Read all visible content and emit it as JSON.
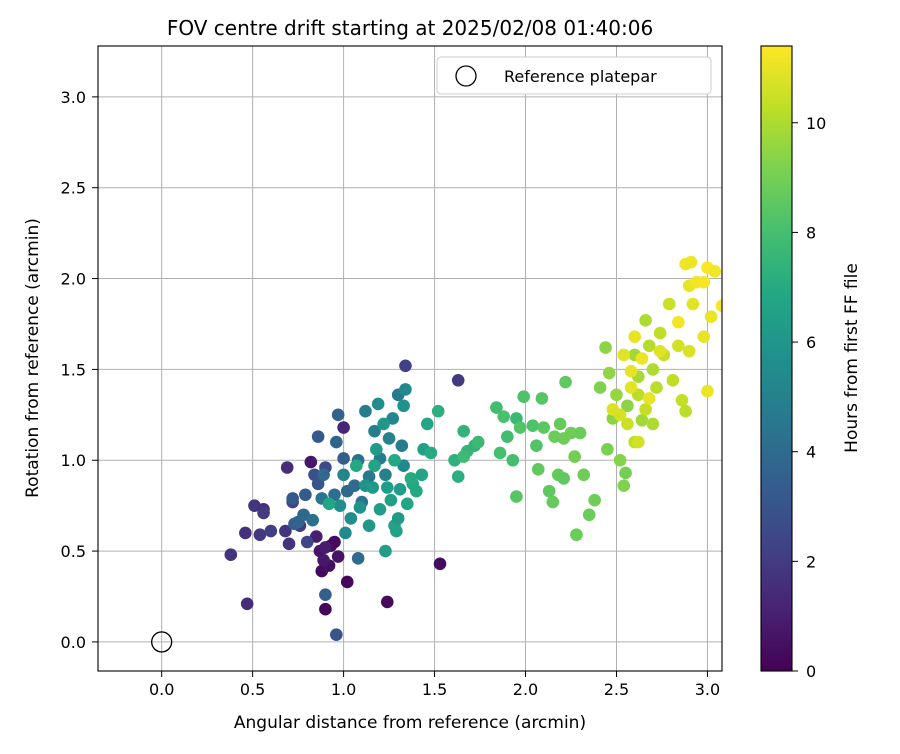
{
  "chart_data": {
    "type": "scatter",
    "title": "FOV centre drift starting at 2025/02/08 01:40:06",
    "xlabel": "Angular distance from reference (arcmin)",
    "ylabel": "Rotation from reference (arcmin)",
    "xlim": [
      -0.35,
      3.08
    ],
    "ylim": [
      -0.16,
      3.28
    ],
    "xticks": [
      0.0,
      0.5,
      1.0,
      1.5,
      2.0,
      2.5,
      3.0
    ],
    "xtick_labels": [
      "0.0",
      "0.5",
      "1.0",
      "1.5",
      "2.0",
      "2.5",
      "3.0"
    ],
    "yticks": [
      0.0,
      0.5,
      1.0,
      1.5,
      2.0,
      2.5,
      3.0
    ],
    "ytick_labels": [
      "0.0",
      "0.5",
      "1.0",
      "1.5",
      "2.0",
      "2.5",
      "3.0"
    ],
    "grid": true,
    "legend": {
      "placement": "top-right",
      "entries": [
        {
          "label": "Reference platepar",
          "marker": "open-circle"
        }
      ]
    },
    "reference_point": {
      "name": "Reference platepar",
      "x": 0.0,
      "y": 0.0
    },
    "colorbar": {
      "label": "Hours from first FF file",
      "colormap": "viridis",
      "range": [
        0,
        11.4
      ],
      "ticks": [
        0,
        2,
        4,
        6,
        8,
        10
      ],
      "tick_labels": [
        "0",
        "2",
        "4",
        "6",
        "8",
        "10"
      ]
    },
    "point_columns": [
      "x",
      "y",
      "hours"
    ],
    "points": [
      [
        0.9,
        0.18,
        0.2
      ],
      [
        0.88,
        0.39,
        0.3
      ],
      [
        0.92,
        0.42,
        0.5
      ],
      [
        0.95,
        0.55,
        0.4
      ],
      [
        0.87,
        0.5,
        0.6
      ],
      [
        0.93,
        0.53,
        0.3
      ],
      [
        1.02,
        0.33,
        0.2
      ],
      [
        1.24,
        0.22,
        0.3
      ],
      [
        1.53,
        0.43,
        0.4
      ],
      [
        0.82,
        0.99,
        0.7
      ],
      [
        0.89,
        0.45,
        0.8
      ],
      [
        0.9,
        0.52,
        0.9
      ],
      [
        0.97,
        0.47,
        0.6
      ],
      [
        0.85,
        0.58,
        1.0
      ],
      [
        1.0,
        1.18,
        1.2
      ],
      [
        0.47,
        0.21,
        1.5
      ],
      [
        0.38,
        0.48,
        1.7
      ],
      [
        0.46,
        0.6,
        1.6
      ],
      [
        0.51,
        0.75,
        1.8
      ],
      [
        0.56,
        0.73,
        1.6
      ],
      [
        0.54,
        0.59,
        1.9
      ],
      [
        0.56,
        0.71,
        2.0
      ],
      [
        0.6,
        0.61,
        2.1
      ],
      [
        0.68,
        0.61,
        1.8
      ],
      [
        0.7,
        0.54,
        1.7
      ],
      [
        0.69,
        0.96,
        1.5
      ],
      [
        0.72,
        0.77,
        2.2
      ],
      [
        0.76,
        0.64,
        2.0
      ],
      [
        0.8,
        0.55,
        2.4
      ],
      [
        1.63,
        1.44,
        2.0
      ],
      [
        1.34,
        1.52,
        2.2
      ],
      [
        0.9,
        0.26,
        3.4
      ],
      [
        0.96,
        0.04,
        3.0
      ],
      [
        0.9,
        0.96,
        2.6
      ],
      [
        0.84,
        0.92,
        2.8
      ],
      [
        0.86,
        0.87,
        3.0
      ],
      [
        0.72,
        0.79,
        3.2
      ],
      [
        0.73,
        0.65,
        3.4
      ],
      [
        0.75,
        0.66,
        3.6
      ],
      [
        0.79,
        0.81,
        3.3
      ],
      [
        0.78,
        0.7,
        3.8
      ],
      [
        0.86,
        1.13,
        3.2
      ],
      [
        0.83,
        0.67,
        4.2
      ],
      [
        0.88,
        0.79,
        4.4
      ],
      [
        0.89,
        0.92,
        3.9
      ],
      [
        0.95,
        0.81,
        4.1
      ],
      [
        0.97,
        1.25,
        3.6
      ],
      [
        0.96,
        1.1,
        3.7
      ],
      [
        1.0,
        1.01,
        3.4
      ],
      [
        1.02,
        0.83,
        3.8
      ],
      [
        1.06,
        0.86,
        4.0
      ],
      [
        1.08,
        1.0,
        4.2
      ],
      [
        1.08,
        0.46,
        3.9
      ],
      [
        1.1,
        0.77,
        4.4
      ],
      [
        1.14,
        0.91,
        4.6
      ],
      [
        1.12,
        1.27,
        4.8
      ],
      [
        1.17,
        1.16,
        4.9
      ],
      [
        1.2,
        1.01,
        4.7
      ],
      [
        1.23,
        0.92,
        5.0
      ],
      [
        1.25,
        1.12,
        5.1
      ],
      [
        1.27,
        1.23,
        5.2
      ],
      [
        1.3,
        1.36,
        4.6
      ],
      [
        1.32,
        1.08,
        4.8
      ],
      [
        1.33,
        0.97,
        5.3
      ],
      [
        1.34,
        1.39,
        5.4
      ],
      [
        0.98,
        0.75,
        5.6
      ],
      [
        1.0,
        0.92,
        5.2
      ],
      [
        1.01,
        0.6,
        5.4
      ],
      [
        1.04,
        0.68,
        5.6
      ],
      [
        1.09,
        0.74,
        5.8
      ],
      [
        1.12,
        0.86,
        5.9
      ],
      [
        1.14,
        0.64,
        6.0
      ],
      [
        1.16,
        0.85,
        6.1
      ],
      [
        1.18,
        1.06,
        6.2
      ],
      [
        1.2,
        0.73,
        6.3
      ],
      [
        1.22,
        1.2,
        6.0
      ],
      [
        1.24,
        0.85,
        6.4
      ],
      [
        1.26,
        0.78,
        6.5
      ],
      [
        1.28,
        0.64,
        6.6
      ],
      [
        1.3,
        0.68,
        6.2
      ],
      [
        1.31,
        0.84,
        6.3
      ],
      [
        1.33,
        1.3,
        5.8
      ],
      [
        1.35,
        0.76,
        6.7
      ],
      [
        1.38,
        0.87,
        6.8
      ],
      [
        1.4,
        0.83,
        6.9
      ],
      [
        1.43,
        0.92,
        6.7
      ],
      [
        1.44,
        1.06,
        6.5
      ],
      [
        1.46,
        1.2,
        6.8
      ],
      [
        1.48,
        1.04,
        7.0
      ],
      [
        1.52,
        1.27,
        7.2
      ],
      [
        1.19,
        1.31,
        5.6
      ],
      [
        1.23,
        0.5,
        6.4
      ],
      [
        1.29,
        0.61,
        6.6
      ],
      [
        1.07,
        0.97,
        6.9
      ],
      [
        1.17,
        0.97,
        6.7
      ],
      [
        1.37,
        0.9,
        7.0
      ],
      [
        0.92,
        0.76,
        6.8
      ],
      [
        1.28,
        1.0,
        6.9
      ],
      [
        1.61,
        1.0,
        7.3
      ],
      [
        1.63,
        0.91,
        7.2
      ],
      [
        1.66,
        1.16,
        7.4
      ],
      [
        1.68,
        1.05,
        7.6
      ],
      [
        1.72,
        1.08,
        7.4
      ],
      [
        1.74,
        1.1,
        7.7
      ],
      [
        1.66,
        1.02,
        7.8
      ],
      [
        1.84,
        1.29,
        7.9
      ],
      [
        1.86,
        1.04,
        8.0
      ],
      [
        1.88,
        1.24,
        8.1
      ],
      [
        1.9,
        1.13,
        7.9
      ],
      [
        1.93,
        1.0,
        8.0
      ],
      [
        1.95,
        1.23,
        7.7
      ],
      [
        1.97,
        1.18,
        8.3
      ],
      [
        1.95,
        0.8,
        8.4
      ],
      [
        1.99,
        1.35,
        8.2
      ],
      [
        2.04,
        1.19,
        8.2
      ],
      [
        2.06,
        1.08,
        8.3
      ],
      [
        2.09,
        1.34,
        8.4
      ],
      [
        2.1,
        1.18,
        8.5
      ],
      [
        2.13,
        0.83,
        8.6
      ],
      [
        2.16,
        1.13,
        8.8
      ],
      [
        2.19,
        1.2,
        8.7
      ],
      [
        2.21,
        1.12,
        8.9
      ],
      [
        2.22,
        1.43,
        8.6
      ],
      [
        2.25,
        1.15,
        8.9
      ],
      [
        2.27,
        1.02,
        9.0
      ],
      [
        2.3,
        1.15,
        8.8
      ],
      [
        2.32,
        0.92,
        8.9
      ],
      [
        2.35,
        0.7,
        8.8
      ],
      [
        2.38,
        0.78,
        8.9
      ],
      [
        2.28,
        0.59,
        8.8
      ],
      [
        2.15,
        0.77,
        8.7
      ],
      [
        2.07,
        0.95,
        8.6
      ],
      [
        2.18,
        0.92,
        8.7
      ],
      [
        2.21,
        0.9,
        8.6
      ],
      [
        2.41,
        1.4,
        9.2
      ],
      [
        2.44,
        1.62,
        9.4
      ],
      [
        2.46,
        1.48,
        9.5
      ],
      [
        2.48,
        1.23,
        9.4
      ],
      [
        2.5,
        1.36,
        9.6
      ],
      [
        2.52,
        1.0,
        9.3
      ],
      [
        2.54,
        0.86,
        9.2
      ],
      [
        2.56,
        1.3,
        9.4
      ],
      [
        2.45,
        1.06,
        9.1
      ],
      [
        2.55,
        0.93,
        9.0
      ],
      [
        2.6,
        1.58,
        9.8
      ],
      [
        2.62,
        1.46,
        9.9
      ],
      [
        2.64,
        1.22,
        9.8
      ],
      [
        2.66,
        1.77,
        10.0
      ],
      [
        2.68,
        1.63,
        10.1
      ],
      [
        2.7,
        1.5,
        10.0
      ],
      [
        2.72,
        1.4,
        10.2
      ],
      [
        2.74,
        1.7,
        10.3
      ],
      [
        2.76,
        1.58,
        10.4
      ],
      [
        2.79,
        1.86,
        10.5
      ],
      [
        2.81,
        1.44,
        10.3
      ],
      [
        2.84,
        1.63,
        10.6
      ],
      [
        2.86,
        1.33,
        10.4
      ],
      [
        2.88,
        1.27,
        10.2
      ],
      [
        2.9,
        1.6,
        10.8
      ],
      [
        2.92,
        1.86,
        10.9
      ],
      [
        2.62,
        1.36,
        10.2
      ],
      [
        2.66,
        1.28,
        10.4
      ],
      [
        2.7,
        1.2,
        10.0
      ],
      [
        2.6,
        1.1,
        10.3
      ],
      [
        2.56,
        1.2,
        10.5
      ],
      [
        2.62,
        1.1,
        10.6
      ],
      [
        2.52,
        1.25,
        10.7
      ],
      [
        2.48,
        1.28,
        10.8
      ],
      [
        2.58,
        1.4,
        10.9
      ],
      [
        2.68,
        1.34,
        11.0
      ],
      [
        2.88,
        2.08,
        11.2
      ],
      [
        2.91,
        2.09,
        11.1
      ],
      [
        2.9,
        1.96,
        11.0
      ],
      [
        2.94,
        1.98,
        11.2
      ],
      [
        2.98,
        1.98,
        11.3
      ],
      [
        3.0,
        2.06,
        11.4
      ],
      [
        3.02,
        1.79,
        11.1
      ],
      [
        3.04,
        2.04,
        11.2
      ],
      [
        2.98,
        1.68,
        11.0
      ],
      [
        3.0,
        1.38,
        11.1
      ],
      [
        3.08,
        1.85,
        11.3
      ],
      [
        2.6,
        1.68,
        11.0
      ],
      [
        2.54,
        1.58,
        10.9
      ],
      [
        2.64,
        1.56,
        11.1
      ],
      [
        2.74,
        1.6,
        10.9
      ],
      [
        2.84,
        1.76,
        11.2
      ],
      [
        2.58,
        1.49,
        11.0
      ]
    ]
  }
}
